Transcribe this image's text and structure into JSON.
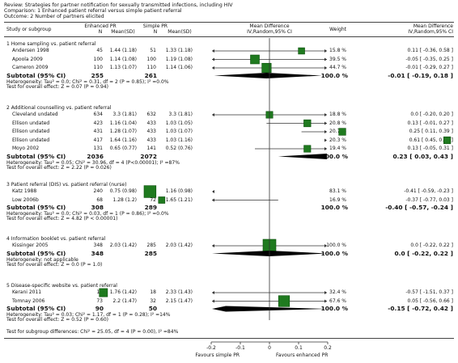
{
  "review": {
    "review": "Review:  Strategies for partner notification for sexually transmitted infections, including HIV",
    "comparison": "Comparison:  1 Enhanced patient referral versus simple patient referral",
    "outcome": "Outcome:  2 Number of partners elicited"
  },
  "columns": {
    "study": "Study or subgroup",
    "exp": "Enhanced PR",
    "exp_n": "N",
    "exp_mean": "Mean(SD)",
    "ctl": "Simple PR",
    "ctl_n": "N",
    "ctl_mean": "Mean(SD)",
    "md1": "Mean Difference",
    "md2": "IV,Random,95% CI",
    "weight": "Weight",
    "mdr1": "Mean Difference",
    "mdr2": "IV,Random,95% CI"
  },
  "chart_data": {
    "type": "forest",
    "xlim": [
      -0.2,
      0.2
    ],
    "ticks": [
      "-0.2",
      "-0.1",
      "0",
      "0.1",
      "0.2"
    ],
    "tick_values": [
      -0.2,
      -0.1,
      0,
      0.1,
      0.2
    ],
    "left_label": "Favours simple PR",
    "right_label": "Favours enhanced PR",
    "groups": [
      {
        "title": "1 Home sampling vs. patient referral",
        "studies": [
          {
            "name": "Andersen 1998",
            "n1": "45",
            "m1": "1.44 (1.18)",
            "n2": "51",
            "m2": "1.33 (1.18)",
            "weight": "15.8 %",
            "ci": "0.11 [ -0.36, 0.58 ]",
            "md": 0.11,
            "lo": -0.36,
            "hi": 0.58,
            "w": 15.8
          },
          {
            "name": "Apoola 2009",
            "n1": "100",
            "m1": "1.14 (1.08)",
            "n2": "100",
            "m2": "1.19 (1.08)",
            "weight": "39.5 %",
            "ci": "-0.05 [ -0.35, 0.25 ]",
            "md": -0.05,
            "lo": -0.35,
            "hi": 0.25,
            "w": 39.5
          },
          {
            "name": "Cameron 2009",
            "n1": "110",
            "m1": "1.13 (1.07)",
            "n2": "110",
            "m2": "1.14 (1.06)",
            "weight": "44.7 %",
            "ci": "-0.01 [ -0.29, 0.27 ]",
            "md": -0.01,
            "lo": -0.29,
            "hi": 0.27,
            "w": 44.7
          }
        ],
        "subtotal": {
          "label": "Subtotal (95% CI)",
          "n1": "255",
          "n2": "261",
          "weight": "100.0 %",
          "ci": "-0.01 [ -0.19, 0.18 ]",
          "md": -0.01,
          "lo": -0.19,
          "hi": 0.18
        },
        "het": "Heterogeneity: Tau² = 0.0; Chi² = 0.31, df = 2 (P = 0.85); I² =0.0%",
        "test": "Test for overall effect: Z = 0.07 (P = 0.94)"
      },
      {
        "title": "2 Additional counselling vs. patient referral",
        "studies": [
          {
            "name": "Cleveland undated",
            "n1": "634",
            "m1": "3.3 (1.81)",
            "n2": "632",
            "m2": "3.3 (1.81)",
            "weight": "18.8 %",
            "ci": "0.0 [ -0.20, 0.20 ]",
            "md": 0.0,
            "lo": -0.2,
            "hi": 0.2,
            "w": 18.8
          },
          {
            "name": "Ellison undated",
            "n1": "423",
            "m1": "1.16 (1.04)",
            "n2": "433",
            "m2": "1.03 (1.05)",
            "weight": "20.8 %",
            "ci": "0.13 [ -0.01, 0.27 ]",
            "md": 0.13,
            "lo": -0.01,
            "hi": 0.27,
            "w": 20.8
          },
          {
            "name": "Ellison undated",
            "n1": "431",
            "m1": "1.28 (1.07)",
            "n2": "433",
            "m2": "1.03 (1.07)",
            "weight": "20.7 %",
            "ci": "0.25 [ 0.11, 0.39 ]",
            "md": 0.25,
            "lo": 0.11,
            "hi": 0.39,
            "w": 20.7
          },
          {
            "name": "Ellison undated",
            "n1": "417",
            "m1": "1.64 (1.16)",
            "n2": "433",
            "m2": "1.03 (1.16)",
            "weight": "20.3 %",
            "ci": "0.61 [ 0.45, 0.77 ]",
            "md": 0.61,
            "lo": 0.45,
            "hi": 0.77,
            "w": 20.3
          },
          {
            "name": "Moyo 2002",
            "n1": "131",
            "m1": "0.65 (0.77)",
            "n2": "141",
            "m2": "0.52 (0.76)",
            "weight": "19.4 %",
            "ci": "0.13 [ -0.05, 0.31 ]",
            "md": 0.13,
            "lo": -0.05,
            "hi": 0.31,
            "w": 19.4
          }
        ],
        "subtotal": {
          "label": "Subtotal (95% CI)",
          "n1": "2036",
          "n2": "2072",
          "weight": "100.0 %",
          "ci": "0.23 [ 0.03, 0.43 ]",
          "md": 0.23,
          "lo": 0.03,
          "hi": 0.43
        },
        "het": "Heterogeneity: Tau² = 0.05; Chi² = 30.96, df = 4 (P<0.00001); I² =87%",
        "test": "Test for overall effect: Z = 2.22 (P = 0.026)"
      },
      {
        "title": "3 Patient referral (DIS) vs. patient referral (nurse)",
        "studies": [
          {
            "name": "Katz 1988",
            "n1": "240",
            "m1": "0.75 (0.98)",
            "n2": "217",
            "m2": "1.16 (0.98)",
            "weight": "83.1 %",
            "ci": "-0.41 [ -0.59, -0.23 ]",
            "md": -0.41,
            "lo": -0.59,
            "hi": -0.23,
            "w": 83.1
          },
          {
            "name": "Low 2006b",
            "n1": "68",
            "m1": "1.28 (1.2)",
            "n2": "72",
            "m2": "1.65 (1.21)",
            "weight": "16.9 %",
            "ci": "-0.37 [ -0.77, 0.03 ]",
            "md": -0.37,
            "lo": -0.77,
            "hi": 0.03,
            "w": 16.9
          }
        ],
        "subtotal": {
          "label": "Subtotal (95% CI)",
          "n1": "308",
          "n2": "289",
          "weight": "100.0 %",
          "ci": "-0.40 [ -0.57, -0.24 ]",
          "md": -0.4,
          "lo": -0.57,
          "hi": -0.24
        },
        "het": "Heterogeneity: Tau² = 0.0; Chi² = 0.03, df = 1 (P = 0.86); I² =0.0%",
        "test": "Test for overall effect: Z = 4.82 (P < 0.00001)"
      },
      {
        "title": "4 Information booklet vs. patient referral",
        "studies": [
          {
            "name": "Kissinger 2005",
            "n1": "348",
            "m1": "2.03 (1.42)",
            "n2": "285",
            "m2": "2.03 (1.42)",
            "weight": "100.0 %",
            "ci": "0.0 [ -0.22, 0.22 ]",
            "md": 0.0,
            "lo": -0.22,
            "hi": 0.22,
            "w": 100.0
          }
        ],
        "subtotal": {
          "label": "Subtotal (95% CI)",
          "n1": "348",
          "n2": "285",
          "weight": "100.0 %",
          "ci": "0.0 [ -0.22, 0.22 ]",
          "md": 0.0,
          "lo": -0.22,
          "hi": 0.22
        },
        "het": "Heterogeneity: not applicable",
        "test": "Test for overall effect: Z = 0.0 (P = 1.0)"
      },
      {
        "title": "5 Disease-specific website vs. patient referral",
        "studies": [
          {
            "name": "Kerani 2011",
            "n1": "17",
            "m1": "1.76 (1.42)",
            "n2": "18",
            "m2": "2.33 (1.43)",
            "weight": "32.4 %",
            "ci": "-0.57 [ -1.51, 0.37 ]",
            "md": -0.57,
            "lo": -1.51,
            "hi": 0.37,
            "w": 32.4
          },
          {
            "name": "Tomnay 2006",
            "n1": "73",
            "m1": "2.2 (1.47)",
            "n2": "32",
            "m2": "2.15 (1.47)",
            "weight": "67.6 %",
            "ci": "0.05 [ -0.56, 0.66 ]",
            "md": 0.05,
            "lo": -0.56,
            "hi": 0.66,
            "w": 67.6
          }
        ],
        "subtotal": {
          "label": "Subtotal (95% CI)",
          "n1": "90",
          "n2": "50",
          "weight": "100.0 %",
          "ci": "-0.15 [ -0.72, 0.42 ]",
          "md": -0.15,
          "lo": -0.72,
          "hi": 0.42
        },
        "het": "Heterogeneity: Tau² = 0.03; Chi² = 1.17, df = 1 (P = 0.28); I² =14%",
        "test": "Test for overall effect: Z = 0.52 (P = 0.60)"
      }
    ],
    "overall_test": "Test for subgroup differences: Chi² = 25.05, df = 4 (P = 0.00), I² =84%",
    "colors": {
      "square": "#1f7a1f",
      "square_edge": "#0a4d0a",
      "line": "#333333",
      "diamond": "#000000"
    }
  }
}
